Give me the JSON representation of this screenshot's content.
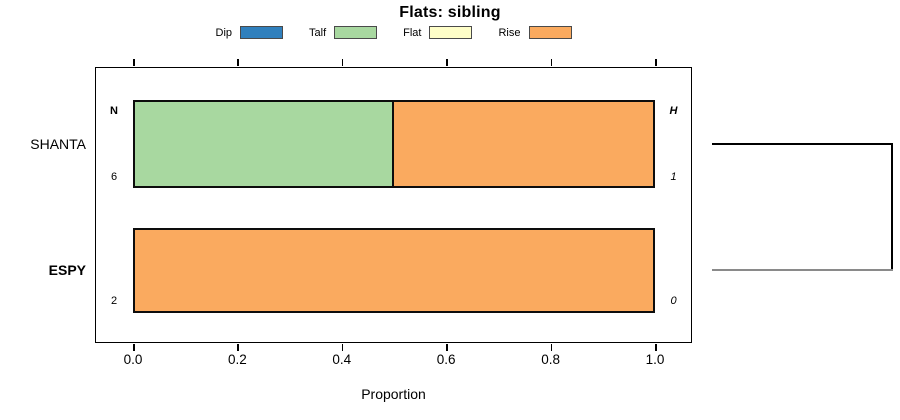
{
  "title": "Flats: sibling",
  "legend": {
    "items": [
      {
        "label": "Dip",
        "color": "#3080BD"
      },
      {
        "label": "Talf",
        "color": "#A8D8A0"
      },
      {
        "label": "Flat",
        "color": "#FEFEC8"
      },
      {
        "label": "Rise",
        "color": "#FAAA5F"
      }
    ]
  },
  "chart_data": {
    "type": "bar",
    "orientation": "horizontal",
    "stacked": true,
    "title": "Flats: sibling",
    "xlabel": "Proportion",
    "xlim": [
      0.0,
      1.0
    ],
    "xticks": [
      "0.0",
      "0.2",
      "0.4",
      "0.6",
      "0.8",
      "1.0"
    ],
    "legend_position": "top",
    "categories": [
      "SHANTA",
      "ESPY"
    ],
    "series": [
      {
        "name": "Dip",
        "color": "#3080BD",
        "values": [
          0.0,
          0.0
        ]
      },
      {
        "name": "Talf",
        "color": "#A8D8A0",
        "values": [
          0.5,
          0.0
        ]
      },
      {
        "name": "Flat",
        "color": "#FEFEC8",
        "values": [
          0.0,
          0.0
        ]
      },
      {
        "name": "Rise",
        "color": "#FAAA5F",
        "values": [
          0.5,
          1.0
        ]
      }
    ],
    "annotations": {
      "header_left": "N",
      "header_right": "H",
      "rows": [
        {
          "category": "SHANTA",
          "n": "6",
          "h": "1"
        },
        {
          "category": "ESPY",
          "n": "2",
          "h": "0"
        }
      ]
    },
    "right_bracket": "cluster join linking SHANTA and ESPY rows"
  }
}
